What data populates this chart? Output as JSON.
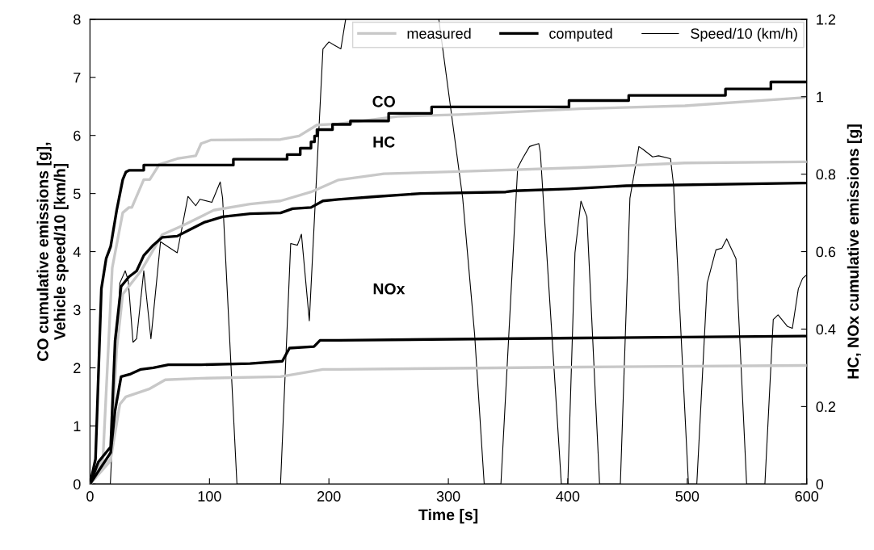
{
  "chart_data": {
    "type": "line",
    "xlabel": "Time [s]",
    "ylabel": "CO cumulative emissions [g],\nVehicle speed/10 [km/h]",
    "y2label": "HC, NOx cumulative emissions [g]",
    "xlim": [
      0,
      600
    ],
    "xticks": [
      0,
      100,
      200,
      300,
      400,
      500,
      600
    ],
    "ylim": [
      0,
      8
    ],
    "yticks": [
      0,
      1,
      2,
      3,
      4,
      5,
      6,
      7,
      8
    ],
    "y2lim": [
      0,
      1.2
    ],
    "y2ticks": [
      0,
      0.2,
      0.4,
      0.6,
      0.8,
      1,
      1.2
    ],
    "grid": false,
    "legend": "top right",
    "marker": "none",
    "annotations": [
      "CO",
      "HC",
      "NOx"
    ],
    "series": [
      {
        "name": "measured",
        "color": "#c8c8c8",
        "x": [
          0,
          10.8,
          18.6,
          27.4,
          32.6,
          35,
          45,
          50,
          58,
          73,
          88.5,
          93,
          101,
          159.5,
          175,
          190,
          208,
          259,
          309,
          410.5,
          498,
          597,
          600
        ],
        "values": [
          0,
          0.43,
          3.72,
          4.67,
          4.76,
          4.76,
          5.24,
          5.24,
          5.5,
          5.6,
          5.65,
          5.86,
          5.92,
          5.93,
          5.99,
          6.18,
          6.2,
          6.33,
          6.36,
          6.46,
          6.51,
          6.65,
          6.67
        ]
      },
      {
        "name": "computed",
        "color": "#000000",
        "x": [
          0,
          4.6,
          9.5,
          13.5,
          17.3,
          22.3,
          27.4,
          30,
          33,
          45,
          45,
          120,
          120,
          165,
          165,
          176,
          176,
          185,
          185,
          188,
          188,
          190,
          190,
          203,
          203,
          218,
          218,
          250,
          250,
          286,
          286,
          401,
          401,
          451,
          451,
          532,
          532,
          570,
          570,
          600
        ],
        "values": [
          0,
          0.43,
          3.36,
          3.88,
          4.09,
          4.71,
          5.24,
          5.37,
          5.4,
          5.4,
          5.49,
          5.49,
          5.59,
          5.59,
          5.67,
          5.67,
          5.78,
          5.78,
          5.89,
          5.89,
          5.99,
          5.99,
          6.1,
          6.1,
          6.19,
          6.19,
          6.25,
          6.25,
          6.38,
          6.38,
          6.49,
          6.49,
          6.6,
          6.6,
          6.69,
          6.69,
          6.8,
          6.8,
          6.92,
          6.92
        ]
      },
      {
        "color": "#c8c8c8",
        "axis": "y2",
        "x": [
          0,
          17.3,
          22.3,
          27.4,
          42.6,
          60.5,
          78,
          103.6,
          134,
          159.5,
          185,
          208,
          246,
          309,
          410.5,
          498,
          597,
          600
        ],
        "values": [
          0,
          0.06,
          0.347,
          0.49,
          0.55,
          0.644,
          0.668,
          0.707,
          0.723,
          0.731,
          0.754,
          0.785,
          0.801,
          0.807,
          0.817,
          0.829,
          0.832,
          0.832
        ]
      },
      {
        "color": "#000000",
        "axis": "y2",
        "x": [
          0,
          7,
          17.3,
          21,
          26,
          32.6,
          39,
          45,
          53,
          60.5,
          73,
          83,
          96,
          111,
          134,
          159.5,
          169.6,
          185,
          195,
          208,
          238.5,
          276.7,
          348,
          355,
          401,
          449,
          597,
          600
        ],
        "values": [
          0,
          0.057,
          0.096,
          0.37,
          0.51,
          0.535,
          0.55,
          0.59,
          0.617,
          0.637,
          0.64,
          0.656,
          0.676,
          0.69,
          0.698,
          0.7,
          0.711,
          0.714,
          0.731,
          0.735,
          0.742,
          0.75,
          0.754,
          0.757,
          0.762,
          0.77,
          0.777,
          0.777
        ]
      },
      {
        "color": "#c8c8c8",
        "axis": "y2",
        "x": [
          0,
          17.3,
          25,
          30,
          50,
          63,
          93,
          159.5,
          195,
          208,
          410.5,
          597,
          600
        ],
        "values": [
          0,
          0.065,
          0.206,
          0.225,
          0.246,
          0.269,
          0.273,
          0.277,
          0.296,
          0.296,
          0.302,
          0.306,
          0.306
        ]
      },
      {
        "color": "#000000",
        "axis": "y2",
        "x": [
          0,
          17.3,
          21,
          26,
          34,
          42.6,
          53,
          65.5,
          93,
          134,
          161,
          167,
          187.5,
          192.6,
          208,
          410.5,
          597,
          600
        ],
        "values": [
          0,
          0.081,
          0.19,
          0.277,
          0.284,
          0.296,
          0.3,
          0.308,
          0.308,
          0.311,
          0.317,
          0.351,
          0.355,
          0.371,
          0.371,
          0.377,
          0.382,
          0.382
        ]
      },
      {
        "name": "Speed/10 (km/h)",
        "color": "#000000",
        "x": [
          0,
          17,
          25,
          29.5,
          32,
          36,
          39,
          45,
          51,
          59,
          65.5,
          73,
          82,
          88.5,
          92,
          102,
          109,
          111,
          123,
          159.5,
          168,
          173.6,
          177,
          183.6,
          195,
          200,
          204,
          210,
          214,
          250,
          292,
          312,
          322,
          330,
          344,
          358,
          362,
          368,
          375.7,
          377,
          394.6,
          400,
          406,
          411,
          416,
          426.6,
          444,
          452,
          459.5,
          463,
          471,
          476,
          486,
          488.6,
          501,
          508,
          516.7,
          524,
          529,
          533,
          540.8,
          549.7,
          565,
          572,
          576,
          584,
          588,
          593,
          596.6,
          600
        ],
        "values": [
          0,
          0,
          3.46,
          3.67,
          3.5,
          2.44,
          2.5,
          3.67,
          2.5,
          4.17,
          4.08,
          3.98,
          4.95,
          4.79,
          4.9,
          4.85,
          5.2,
          4.92,
          0,
          0,
          4.14,
          4.11,
          4.3,
          2.81,
          7.49,
          7.61,
          7.56,
          7.49,
          8,
          null,
          8,
          4.92,
          2.57,
          0,
          0,
          5.44,
          5.6,
          5.81,
          5.86,
          5.71,
          0,
          0,
          3.98,
          4.87,
          4.6,
          0,
          0,
          4.92,
          5.81,
          5.76,
          5.63,
          5.65,
          5.6,
          5.13,
          0,
          0,
          3.46,
          4.03,
          4.06,
          4.22,
          3.88,
          0,
          0,
          2.83,
          2.91,
          2.71,
          2.68,
          3.36,
          3.54,
          3.6
        ]
      }
    ]
  }
}
